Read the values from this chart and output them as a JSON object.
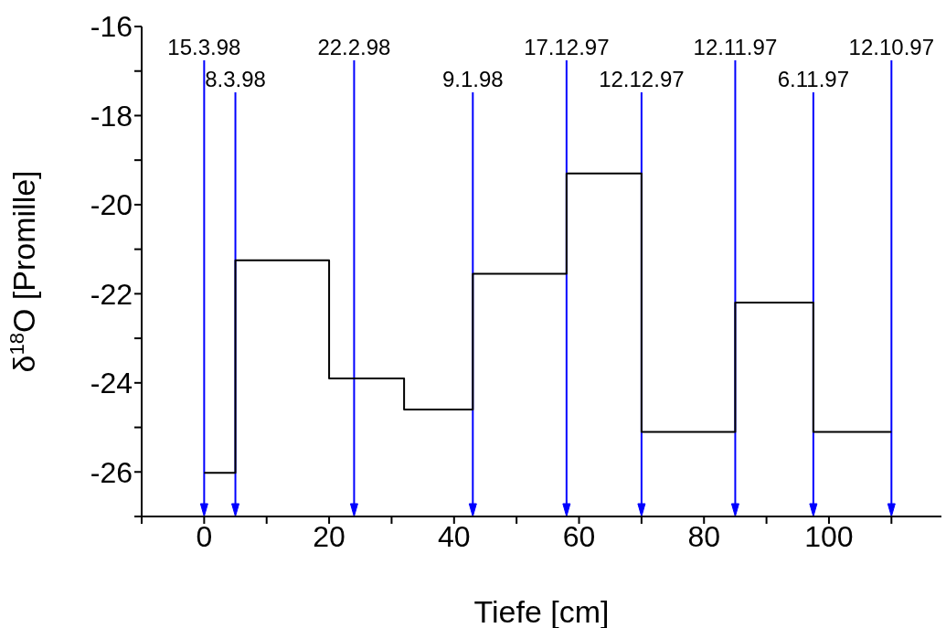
{
  "chart_data": {
    "type": "step",
    "xlabel": "Tiefe [cm]",
    "ylabel": "δ$^{18}$O [Promille]",
    "x": [
      0,
      5,
      20,
      32,
      43,
      58,
      70,
      85,
      97.5,
      110
    ],
    "series": [
      {
        "color": "#000000",
        "values": [
          -26.02,
          -21.25,
          -23.9,
          -24.6,
          -21.55,
          -19.3,
          -25.1,
          -22.2,
          -25.1,
          -25.1
        ]
      }
    ],
    "xlim": [
      -10,
      118
    ],
    "xticks": [
      {
        "value": -10,
        "label": null
      },
      0,
      {
        "value": 10,
        "label": null
      },
      20,
      {
        "value": 30,
        "label": null
      },
      40,
      {
        "value": 50,
        "label": null
      },
      60,
      {
        "value": 70,
        "label": null
      },
      80,
      {
        "value": 90,
        "label": null
      },
      100,
      {
        "value": 110,
        "label": null
      }
    ],
    "ylim": [
      -27,
      -16
    ],
    "yticks": [
      {
        "value": -27,
        "label": null
      },
      -26,
      {
        "value": -25,
        "label": null
      },
      -24,
      {
        "value": -23,
        "label": null
      },
      -22,
      {
        "value": -21,
        "label": null
      },
      -20,
      {
        "value": -19,
        "label": null
      },
      -18,
      {
        "value": -17,
        "label": null
      },
      -16
    ],
    "ref_lines": [
      {
        "axis": "x",
        "value": 0,
        "label": "15.3.98",
        "color": "#0000ff"
      },
      {
        "axis": "x",
        "value": 5,
        "label": "8.3.98",
        "color": "#0000ff"
      },
      {
        "axis": "x",
        "value": 24,
        "label": "22.2.98",
        "color": "#0000ff"
      },
      {
        "axis": "x",
        "value": 43,
        "label": "9.1.98",
        "color": "#0000ff"
      },
      {
        "axis": "x",
        "value": 58,
        "label": "17.12.97",
        "color": "#0000ff"
      },
      {
        "axis": "x",
        "value": 70,
        "label": "12.12.97",
        "color": "#0000ff"
      },
      {
        "axis": "x",
        "value": 85,
        "label": "12.11.97",
        "color": "#0000ff"
      },
      {
        "axis": "x",
        "value": 97.5,
        "label": "6.11.97",
        "color": "#0000ff"
      },
      {
        "axis": "x",
        "value": 110,
        "label": "12.10.97",
        "color": "#0000ff"
      }
    ],
    "grid": false,
    "legend": false
  }
}
